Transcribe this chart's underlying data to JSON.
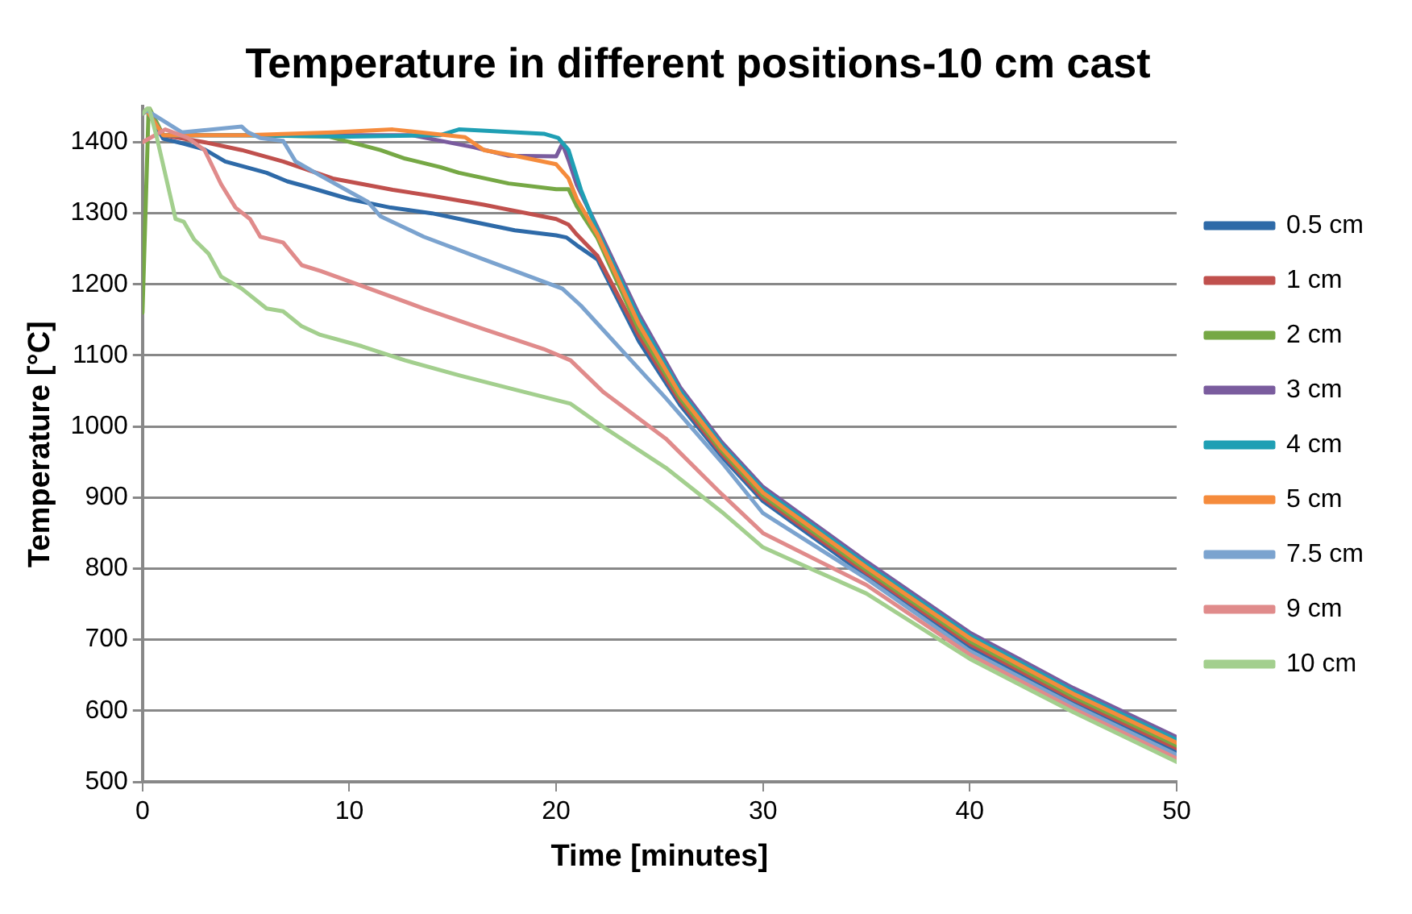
{
  "chart_data": {
    "type": "line",
    "title": "Temperature in different positions-10 cm cast",
    "xlabel": "Time [minutes]",
    "ylabel": "Temperature [°C]",
    "xlim": [
      0,
      50
    ],
    "xticks": [
      0,
      10,
      20,
      30,
      40,
      50
    ],
    "ylim": [
      500,
      1450
    ],
    "yticks": [
      500,
      600,
      700,
      800,
      900,
      1000,
      1100,
      1200,
      1300,
      1400
    ],
    "grid": "y",
    "legend": "right",
    "marker": "none",
    "line_style": "solid",
    "series": [
      {
        "name": "0.5 cm",
        "color": "#2e6aa8",
        "x": [
          0,
          0.2,
          1,
          2,
          3,
          4,
          5,
          6,
          7,
          8,
          10,
          12,
          14,
          16,
          18,
          20,
          20.5,
          21,
          22,
          24,
          26,
          28,
          30,
          35,
          40,
          45,
          50
        ],
        "values": [
          1440,
          1445,
          1405,
          1398,
          1390,
          1373,
          1365,
          1357,
          1345,
          1337,
          1320,
          1308,
          1300,
          1288,
          1276,
          1269,
          1266,
          1255,
          1235,
          1120,
          1030,
          958,
          895,
          790,
          690,
          612,
          543
        ]
      },
      {
        "name": "1 cm",
        "color": "#c0504d",
        "x": [
          0,
          0.2,
          1,
          2,
          3,
          4.8,
          6.8,
          9.2,
          12.1,
          14.1,
          16.5,
          20,
          20.6,
          21,
          22,
          24,
          26,
          28,
          30,
          35,
          40,
          45,
          50
        ],
        "values": [
          1440,
          1445,
          1410,
          1405,
          1400,
          1389,
          1373,
          1349,
          1333,
          1324,
          1312,
          1292,
          1284,
          1270,
          1240,
          1128,
          1035,
          962,
          899,
          794,
          694,
          616,
          547
        ]
      },
      {
        "name": "2 cm",
        "color": "#76a845",
        "x": [
          0,
          0.3,
          1,
          5,
          9,
          11.5,
          12.7,
          14.4,
          15.3,
          17.7,
          20,
          20.6,
          21,
          22,
          24,
          26,
          28,
          30,
          35,
          40,
          45,
          50
        ],
        "values": [
          1160,
          1450,
          1410,
          1410,
          1408,
          1389,
          1377,
          1365,
          1357,
          1342,
          1334,
          1334,
          1310,
          1265,
          1136,
          1040,
          966,
          903,
          798,
          698,
          620,
          551
        ]
      },
      {
        "name": "3 cm",
        "color": "#7a5c9e",
        "x": [
          0,
          0.2,
          1,
          5,
          10,
          13,
          16,
          17.7,
          20,
          20.3,
          20.6,
          21,
          22,
          24,
          26,
          28,
          30,
          35,
          40,
          45,
          50
        ],
        "values": [
          1440,
          1445,
          1410,
          1410,
          1410,
          1410,
          1393,
          1381,
          1380,
          1398,
          1375,
          1340,
          1280,
          1158,
          1055,
          978,
          915,
          810,
          710,
          632,
          563
        ]
      },
      {
        "name": "4 cm",
        "color": "#1f9fb4",
        "x": [
          0,
          0.2,
          1,
          5,
          10,
          14.4,
          15.3,
          19.4,
          20.1,
          20.6,
          21.2,
          22,
          24,
          26,
          28,
          30,
          35,
          40,
          45,
          50
        ],
        "values": [
          1440,
          1445,
          1410,
          1410,
          1408,
          1410,
          1418,
          1412,
          1406,
          1389,
          1333,
          1275,
          1152,
          1050,
          974,
          911,
          806,
          706,
          628,
          559
        ]
      },
      {
        "name": "5 cm",
        "color": "#f58b3c",
        "x": [
          0,
          0.2,
          1,
          5,
          9.2,
          12.1,
          15.6,
          16.5,
          18,
          20,
          20.6,
          21,
          22,
          24,
          26,
          28,
          30,
          35,
          40,
          45,
          50
        ],
        "values": [
          1440,
          1445,
          1410,
          1410,
          1414,
          1418,
          1407,
          1389,
          1381,
          1369,
          1349,
          1320,
          1270,
          1144,
          1045,
          970,
          907,
          802,
          702,
          624,
          555
        ]
      },
      {
        "name": "7.5 cm",
        "color": "#7ba3cf",
        "x": [
          0,
          0.2,
          1.9,
          4.8,
          5.1,
          5.7,
          6.8,
          7.4,
          8.6,
          10.9,
          11.5,
          13.6,
          16.5,
          18,
          20.3,
          21.2,
          25.3,
          28,
          30,
          35,
          40,
          45,
          50
        ],
        "values": [
          1440,
          1445,
          1414,
          1422,
          1414,
          1406,
          1402,
          1373,
          1353,
          1316,
          1296,
          1267,
          1235,
          1219,
          1194,
          1170,
          1040,
          950,
          878,
          786,
          684,
          608,
          538
        ]
      },
      {
        "name": "9 cm",
        "color": "#e08b8b",
        "x": [
          0,
          1.1,
          2.2,
          3,
          3.8,
          4.5,
          5.2,
          5.7,
          6.8,
          7.7,
          8.6,
          10.6,
          13.6,
          16.5,
          19.4,
          20.7,
          22.3,
          25.3,
          28,
          30,
          35,
          40,
          45,
          50
        ],
        "values": [
          1400,
          1418,
          1406,
          1389,
          1341,
          1308,
          1292,
          1267,
          1259,
          1227,
          1219,
          1198,
          1166,
          1137,
          1109,
          1093,
          1048,
          983,
          905,
          850,
          777,
          679,
          603,
          533
        ]
      },
      {
        "name": "10 cm",
        "color": "#a3cf8e",
        "x": [
          0,
          0.3,
          0.7,
          1.6,
          2,
          2.5,
          3.2,
          3.8,
          4.8,
          6,
          6.8,
          7.7,
          8.6,
          10.6,
          12.7,
          15.3,
          18,
          20.7,
          22.3,
          25.3,
          28,
          30,
          35,
          40,
          45,
          50
        ],
        "values": [
          1440,
          1450,
          1406,
          1292,
          1288,
          1263,
          1243,
          1211,
          1194,
          1166,
          1162,
          1141,
          1129,
          1113,
          1093,
          1072,
          1052,
          1032,
          999,
          942,
          880,
          830,
          765,
          673,
          598,
          528
        ]
      }
    ]
  }
}
